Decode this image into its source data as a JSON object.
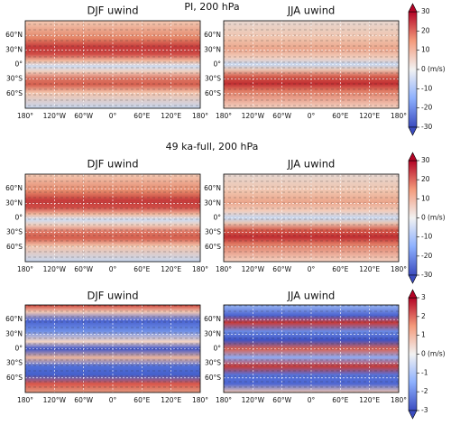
{
  "chart_data": [
    {
      "type": "map",
      "title": "PI, 200 hPa",
      "panels": [
        {
          "title": "DJF uwind"
        },
        {
          "title": "JJA uwind"
        }
      ],
      "xlim": [
        -180,
        180
      ],
      "xticks": [
        {
          "value": -180,
          "label": "180°"
        },
        {
          "value": -120,
          "label": "120°W"
        },
        {
          "value": -60,
          "label": "60°W"
        },
        {
          "value": 0,
          "label": "0°"
        },
        {
          "value": 60,
          "label": "60°E"
        },
        {
          "value": 120,
          "label": "120°E"
        },
        {
          "value": 180,
          "label": "180°"
        }
      ],
      "ylim": [
        -90,
        90
      ],
      "yticks": [
        {
          "value": 60,
          "label": "60°N"
        },
        {
          "value": 30,
          "label": "30°N"
        },
        {
          "value": 0,
          "label": "0°"
        },
        {
          "value": -30,
          "label": "30°S"
        },
        {
          "value": -60,
          "label": "60°S"
        }
      ],
      "colorbar": {
        "label": "(m/s)",
        "lim": [
          -30,
          30
        ],
        "ticks": [
          30,
          20,
          10,
          0,
          -10,
          -20,
          -30
        ]
      }
    },
    {
      "type": "map",
      "title": "49 ka-full, 200 hPa",
      "panels": [
        {
          "title": "DJF uwind"
        },
        {
          "title": "JJA uwind"
        }
      ],
      "xlim": [
        -180,
        180
      ],
      "xticks": [
        {
          "value": -180,
          "label": "180°"
        },
        {
          "value": -120,
          "label": "120°W"
        },
        {
          "value": -60,
          "label": "60°W"
        },
        {
          "value": 0,
          "label": "0°"
        },
        {
          "value": 60,
          "label": "60°E"
        },
        {
          "value": 120,
          "label": "120°E"
        },
        {
          "value": 180,
          "label": "180°"
        }
      ],
      "ylim": [
        -90,
        90
      ],
      "yticks": [
        {
          "value": 60,
          "label": "60°N"
        },
        {
          "value": 30,
          "label": "30°N"
        },
        {
          "value": 0,
          "label": "0°"
        },
        {
          "value": -30,
          "label": "30°S"
        },
        {
          "value": -60,
          "label": "60°S"
        }
      ],
      "colorbar": {
        "label": "(m/s)",
        "lim": [
          -30,
          30
        ],
        "ticks": [
          30,
          20,
          10,
          0,
          -10,
          -20,
          -30
        ]
      }
    },
    {
      "type": "map",
      "panels": [
        {
          "title": "DJF uwind"
        },
        {
          "title": "JJA uwind"
        }
      ],
      "xlim": [
        -180,
        180
      ],
      "xticks": [
        {
          "value": -180,
          "label": "180°"
        },
        {
          "value": -120,
          "label": "120°W"
        },
        {
          "value": -60,
          "label": "60°W"
        },
        {
          "value": 0,
          "label": "0°"
        },
        {
          "value": 60,
          "label": "60°E"
        },
        {
          "value": 120,
          "label": "120°E"
        },
        {
          "value": 180,
          "label": "180°"
        }
      ],
      "ylim": [
        -90,
        90
      ],
      "yticks": [
        {
          "value": 60,
          "label": "60°N"
        },
        {
          "value": 30,
          "label": "30°N"
        },
        {
          "value": 0,
          "label": "0°"
        },
        {
          "value": -30,
          "label": "30°S"
        },
        {
          "value": -60,
          "label": "60°S"
        }
      ],
      "colorbar": {
        "label": "(m/s)",
        "lim": [
          -3,
          3
        ],
        "ticks": [
          3,
          2,
          1,
          0,
          -1,
          -2,
          -3
        ]
      }
    }
  ]
}
